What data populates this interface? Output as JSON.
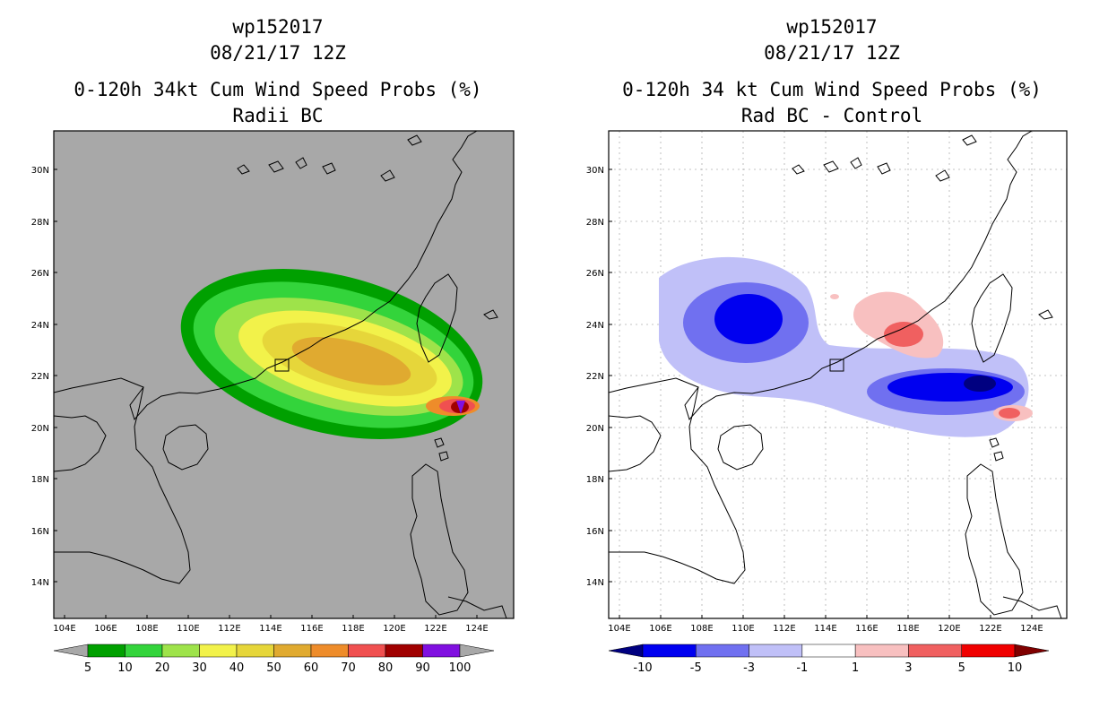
{
  "panels": [
    {
      "id": "left",
      "title_line1": "wp152017",
      "title_line2": "08/21/17 12Z",
      "title_line3": "0-120h 34kt Cum Wind Speed Probs (%)",
      "title_line4": "Radii BC",
      "background": "#a8a8a8",
      "colorbar": {
        "labels": [
          "5",
          "10",
          "20",
          "30",
          "40",
          "50",
          "60",
          "70",
          "80",
          "90",
          "100"
        ],
        "under_color": "#a8a8a8",
        "over_color": "#a8a8a8",
        "colors": [
          "#00a000",
          "#33d43b",
          "#9ee34a",
          "#f2f24a",
          "#e6d63a",
          "#e0aa30",
          "#ee8c2a",
          "#f05050",
          "#a00000",
          "#8010e0"
        ]
      }
    },
    {
      "id": "right",
      "title_line1": "wp152017",
      "title_line2": "08/21/17 12Z",
      "title_line3": "0-120h 34 kt Cum Wind Speed Probs (%)",
      "title_line4": "Rad BC - Control",
      "background": "#ffffff",
      "colorbar": {
        "labels": [
          "-10",
          "-5",
          "-3",
          "-1",
          "1",
          "3",
          "5",
          "10"
        ],
        "under_color": "#000080",
        "over_color": "#800000",
        "colors": [
          "#0000f0",
          "#7070f0",
          "#c0c0f8",
          "#ffffff",
          "#f8c0c0",
          "#f06060",
          "#f00000"
        ]
      }
    }
  ],
  "axes": {
    "lat_labels": [
      "14N",
      "16N",
      "18N",
      "20N",
      "22N",
      "24N",
      "26N",
      "28N",
      "30N"
    ],
    "lon_labels": [
      "104E",
      "106E",
      "108E",
      "110E",
      "112E",
      "114E",
      "116E",
      "118E",
      "120E",
      "122E",
      "124E"
    ]
  }
}
